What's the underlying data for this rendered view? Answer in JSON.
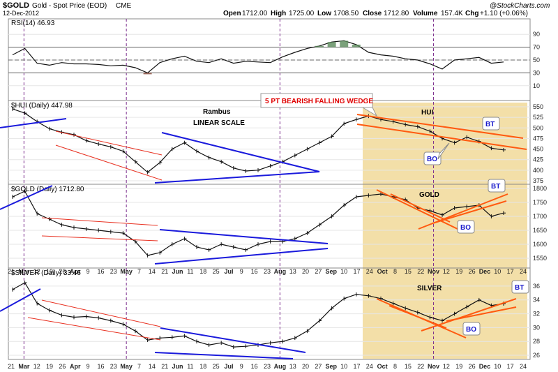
{
  "header": {
    "symbol": "$GOLD",
    "description": "Gold - Spot Price (EOD)",
    "exchange": "CME",
    "date": "12-Dec-2012",
    "open_label": "Open",
    "open": "1712.00",
    "high_label": "High",
    "high": "1725.00",
    "low_label": "Low",
    "low": "1708.50",
    "close_label": "Close",
    "close": "1712.80",
    "volume_label": "Volume",
    "volume": "157.4K",
    "chg_label": "Chg",
    "chg": "+1.10 (+0.06%)",
    "watermark": "@StockCharts.com"
  },
  "colors": {
    "rsi_overbought": "#5a8a5a",
    "rsi_oversold": "#8a4a3a",
    "trendline_blue": "#1a1adc",
    "trendline_red": "#e83020",
    "trendline_orange": "#ff5a10",
    "highlight_zone": "#f3dfa8",
    "callout_text": "#1a1acc",
    "title_red": "#e00000"
  },
  "annotations": {
    "rambus": "Rambus",
    "linear_scale": "LINEAR SCALE",
    "wedge_title": "5 PT BEARISH FALLING WEDGE",
    "hui_label": "HUI",
    "gold_label": "GOLD",
    "silver_label": "SILVER",
    "bt": "BT",
    "bo": "BO"
  },
  "chart_data": [
    {
      "type": "line",
      "panel": "RSI",
      "title": "RSI(14) 46.93",
      "y_ticks": [
        "90",
        "70",
        "50",
        "30",
        "10"
      ],
      "ylim": [
        0,
        100
      ],
      "reference_lines": [
        70,
        50,
        30
      ],
      "x": [
        "Feb 21",
        "Mar 1",
        "Mar 12",
        "Mar 19",
        "Mar 26",
        "Apr 2",
        "Apr 9",
        "Apr 16",
        "Apr 23",
        "Apr 30",
        "May 7",
        "May 14",
        "May 21",
        "Jun 1",
        "Jun 11",
        "Jun 18",
        "Jun 25",
        "Jul 2",
        "Jul 9",
        "Jul 16",
        "Jul 23",
        "Jul 30",
        "Aug 6",
        "Aug 13",
        "Aug 20",
        "Aug 27",
        "Sep 4",
        "Sep 10",
        "Sep 17",
        "Sep 24",
        "Oct 1",
        "Oct 8",
        "Oct 15",
        "Oct 22",
        "Oct 29",
        "Nov 5",
        "Nov 12",
        "Nov 19",
        "Nov 26",
        "Dec 3",
        "Dec 10"
      ],
      "values": [
        58,
        68,
        45,
        42,
        46,
        44,
        44,
        43,
        41,
        42,
        38,
        30,
        46,
        52,
        56,
        48,
        46,
        52,
        45,
        48,
        47,
        46,
        55,
        62,
        68,
        72,
        78,
        80,
        74,
        62,
        58,
        56,
        52,
        50,
        44,
        36,
        50,
        52,
        54,
        45,
        47
      ]
    },
    {
      "type": "line",
      "panel": "HUI",
      "title": "$HUI (Daily) 447.98",
      "y_ticks": [
        "550",
        "525",
        "500",
        "475",
        "450",
        "425",
        "400",
        "375"
      ],
      "ylim": [
        370,
        555
      ],
      "x": [
        "Feb 21",
        "Mar 1",
        "Mar 12",
        "Mar 19",
        "Mar 26",
        "Apr 2",
        "Apr 9",
        "Apr 16",
        "Apr 23",
        "Apr 30",
        "May 7",
        "May 14",
        "May 21",
        "Jun 1",
        "Jun 11",
        "Jun 18",
        "Jun 25",
        "Jul 2",
        "Jul 9",
        "Jul 16",
        "Jul 23",
        "Jul 30",
        "Aug 6",
        "Aug 13",
        "Aug 20",
        "Aug 27",
        "Sep 4",
        "Sep 10",
        "Sep 17",
        "Sep 24",
        "Oct 1",
        "Oct 8",
        "Oct 15",
        "Oct 22",
        "Oct 29",
        "Nov 5",
        "Nov 12",
        "Nov 19",
        "Nov 26",
        "Dec 3",
        "Dec 10"
      ],
      "values": [
        545,
        535,
        515,
        498,
        490,
        484,
        470,
        462,
        455,
        445,
        420,
        395,
        418,
        450,
        465,
        445,
        430,
        420,
        405,
        398,
        400,
        410,
        420,
        435,
        450,
        465,
        480,
        510,
        520,
        528,
        520,
        515,
        508,
        503,
        492,
        475,
        465,
        478,
        468,
        452,
        448
      ]
    },
    {
      "type": "line",
      "panel": "GOLD",
      "title": "$GOLD (Daily) 1712.80",
      "y_ticks": [
        "1800",
        "1750",
        "1700",
        "1650",
        "1600",
        "1550"
      ],
      "ylim": [
        1520,
        1805
      ],
      "x": [
        "Feb 21",
        "Mar 1",
        "Mar 12",
        "Mar 19",
        "Mar 26",
        "Apr 2",
        "Apr 9",
        "Apr 16",
        "Apr 23",
        "Apr 30",
        "May 7",
        "May 14",
        "May 21",
        "Jun 1",
        "Jun 11",
        "Jun 18",
        "Jun 25",
        "Jul 2",
        "Jul 9",
        "Jul 16",
        "Jul 23",
        "Jul 30",
        "Aug 6",
        "Aug 13",
        "Aug 20",
        "Aug 27",
        "Sep 4",
        "Sep 10",
        "Sep 17",
        "Sep 24",
        "Oct 1",
        "Oct 8",
        "Oct 15",
        "Oct 22",
        "Oct 29",
        "Nov 5",
        "Nov 12",
        "Nov 19",
        "Nov 26",
        "Dec 3",
        "Dec 10"
      ],
      "values": [
        1770,
        1790,
        1710,
        1690,
        1670,
        1660,
        1655,
        1650,
        1645,
        1640,
        1610,
        1560,
        1570,
        1600,
        1620,
        1590,
        1580,
        1600,
        1590,
        1580,
        1600,
        1610,
        1610,
        1620,
        1640,
        1670,
        1700,
        1740,
        1770,
        1775,
        1780,
        1770,
        1760,
        1730,
        1720,
        1705,
        1730,
        1735,
        1740,
        1700,
        1712
      ]
    },
    {
      "type": "line",
      "panel": "SILVER",
      "title": "$SILVER (Daily) 33.46",
      "y_ticks": [
        "36",
        "34",
        "32",
        "30",
        "28",
        "26"
      ],
      "ylim": [
        25.5,
        37
      ],
      "x": [
        "Feb 21",
        "Mar 1",
        "Mar 12",
        "Mar 19",
        "Mar 26",
        "Apr 2",
        "Apr 9",
        "Apr 16",
        "Apr 23",
        "Apr 30",
        "May 7",
        "May 14",
        "May 21",
        "Jun 1",
        "Jun 11",
        "Jun 18",
        "Jun 25",
        "Jul 2",
        "Jul 9",
        "Jul 16",
        "Jul 23",
        "Jul 30",
        "Aug 6",
        "Aug 13",
        "Aug 20",
        "Aug 27",
        "Sep 4",
        "Sep 10",
        "Sep 17",
        "Sep 24",
        "Oct 1",
        "Oct 8",
        "Oct 15",
        "Oct 22",
        "Oct 29",
        "Nov 5",
        "Nov 12",
        "Nov 19",
        "Nov 26",
        "Dec 3",
        "Dec 10"
      ],
      "values": [
        35.5,
        36.5,
        33.5,
        32.5,
        31.8,
        31.5,
        31.6,
        31.4,
        31.0,
        30.5,
        29.5,
        28.2,
        28.5,
        28.6,
        28.8,
        28.0,
        27.5,
        27.8,
        27.2,
        27.3,
        27.5,
        27.8,
        28.0,
        28.5,
        29.5,
        31.0,
        32.8,
        34.2,
        34.8,
        34.6,
        34.2,
        33.5,
        32.8,
        32.2,
        31.5,
        31.0,
        32.0,
        33.0,
        34.0,
        33.2,
        33.46
      ]
    }
  ],
  "x_axis": {
    "labels": [
      "21",
      "Mar",
      "12",
      "19",
      "26",
      "Apr",
      "9",
      "16",
      "23",
      "May",
      "7",
      "14",
      "21",
      "Jun",
      "11",
      "18",
      "25",
      "Jul",
      "9",
      "16",
      "23",
      "Aug",
      "13",
      "20",
      "27",
      "Sep",
      "10",
      "17",
      "24",
      "Oct",
      "8",
      "15",
      "22",
      "Nov",
      "12",
      "19",
      "26",
      "Dec",
      "10",
      "17",
      "24"
    ],
    "bold": [
      "Mar",
      "Apr",
      "May",
      "Jun",
      "Jul",
      "Aug",
      "Sep",
      "Oct",
      "Nov",
      "Dec"
    ]
  }
}
